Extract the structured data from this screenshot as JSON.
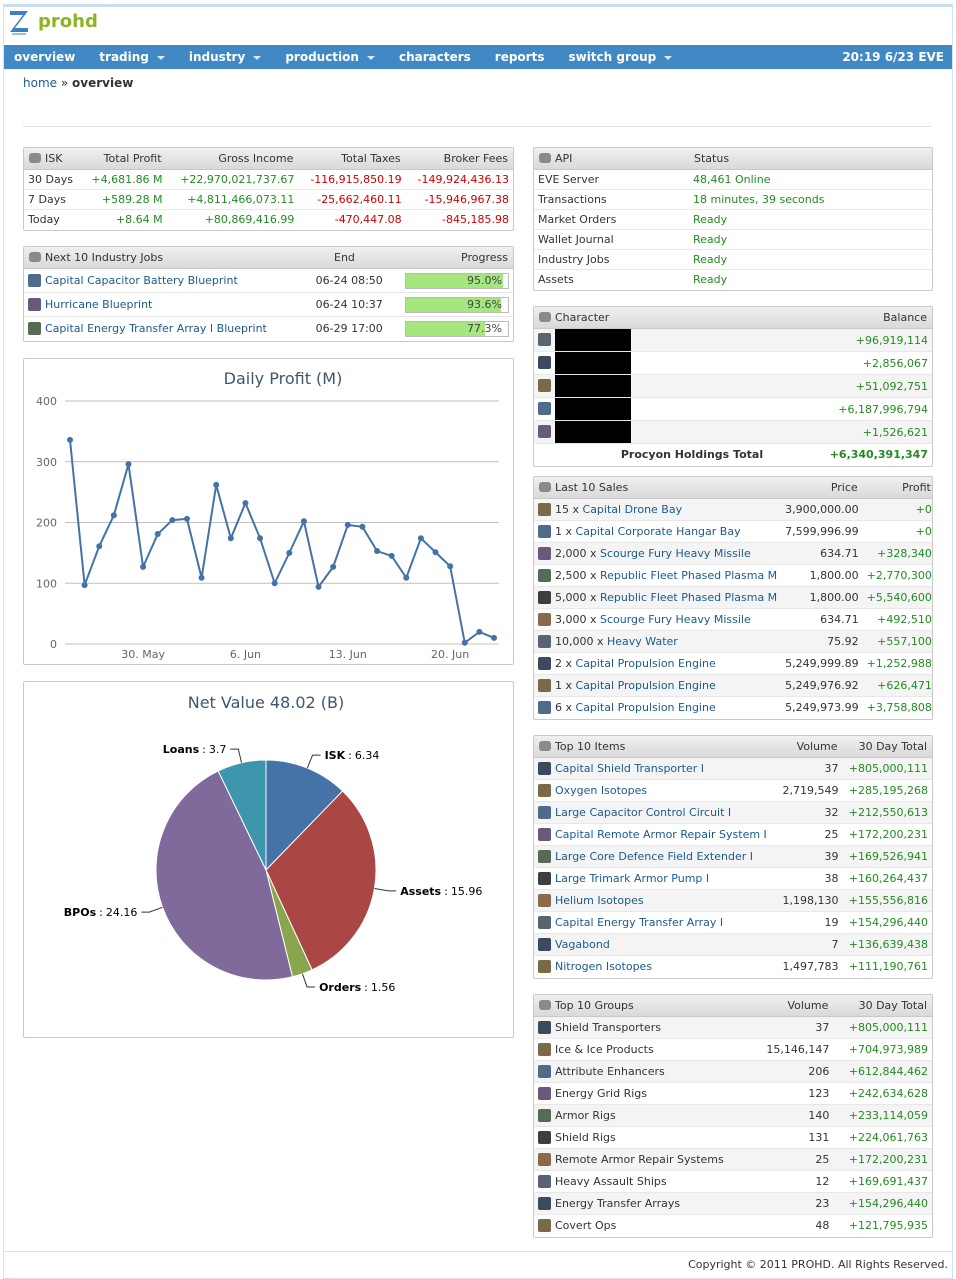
{
  "header": {
    "logo_text": "prohd",
    "clock": "20:19 6/23 EVE"
  },
  "nav": [
    {
      "label": "overview",
      "dropdown": false
    },
    {
      "label": "trading",
      "dropdown": true
    },
    {
      "label": "industry",
      "dropdown": true
    },
    {
      "label": "production",
      "dropdown": true
    },
    {
      "label": "characters",
      "dropdown": false
    },
    {
      "label": "reports",
      "dropdown": false
    },
    {
      "label": "switch group",
      "dropdown": true
    }
  ],
  "breadcrumb": {
    "home": "home",
    "separator": "»",
    "current": "overview"
  },
  "isk_table": {
    "headers": [
      "ISK",
      "Total Profit",
      "Gross Income",
      "Total Taxes",
      "Broker Fees"
    ],
    "rows": [
      [
        "30 Days",
        "+4,681.86 M",
        "+22,970,021,737.67",
        "-116,915,850.19",
        "-149,924,436.13"
      ],
      [
        "7 Days",
        "+589.28 M",
        "+4,811,466,073.11",
        "-25,662,460.11",
        "-15,946,967.38"
      ],
      [
        "Today",
        "+8.64 M",
        "+80,869,416.99",
        "-470,447.08",
        "-845,185.98"
      ]
    ]
  },
  "industry_jobs": {
    "headers": [
      "Next 10 Industry Jobs",
      "End",
      "Progress"
    ],
    "rows": [
      {
        "name": "Capital Capacitor Battery Blueprint",
        "end": "06-24 08:50",
        "progress": {
          "value": 95.0,
          "label": "95.0%"
        }
      },
      {
        "name": "Hurricane Blueprint",
        "end": "06-24 10:37",
        "progress": {
          "value": 93.6,
          "label": "93.6%"
        }
      },
      {
        "name": "Capital Energy Transfer Array I Blueprint",
        "end": "06-29 17:00",
        "progress": {
          "value": 77.3,
          "label": "77.3%"
        }
      }
    ]
  },
  "api_table": {
    "headers": [
      "API",
      "Status"
    ],
    "rows": [
      [
        "EVE Server",
        "48,461 Online"
      ],
      [
        "Transactions",
        "18 minutes, 39 seconds"
      ],
      [
        "Market Orders",
        "Ready"
      ],
      [
        "Wallet Journal",
        "Ready"
      ],
      [
        "Industry Jobs",
        "Ready"
      ],
      [
        "Assets",
        "Ready"
      ]
    ]
  },
  "character_table": {
    "headers": [
      "Character",
      "Balance"
    ],
    "rows": [
      "+96,919,114",
      "+2,856,067",
      "+51,092,751",
      "+6,187,996,794",
      "+1,526,621"
    ],
    "total_label": "Procyon Holdings Total",
    "total_value": "+6,340,391,347"
  },
  "sales_table": {
    "headers": [
      "Last 10 Sales",
      "Price",
      "Profit"
    ],
    "rows": [
      [
        "15 x",
        "Capital Drone Bay",
        "3,900,000.00",
        "+0"
      ],
      [
        "1 x",
        "Capital Corporate Hangar Bay",
        "7,599,996.99",
        "+0"
      ],
      [
        "2,000 x",
        "Scourge Fury Heavy Missile",
        "634.71",
        "+328,340"
      ],
      [
        "2,500 x",
        "Republic Fleet Phased Plasma M",
        "1,800.00",
        "+2,770,300"
      ],
      [
        "5,000 x",
        "Republic Fleet Phased Plasma M",
        "1,800.00",
        "+5,540,600"
      ],
      [
        "3,000 x",
        "Scourge Fury Heavy Missile",
        "634.71",
        "+492,510"
      ],
      [
        "10,000 x",
        "Heavy Water",
        "75.92",
        "+557,100"
      ],
      [
        "2 x",
        "Capital Propulsion Engine",
        "5,249,999.89",
        "+1,252,988"
      ],
      [
        "1 x",
        "Capital Propulsion Engine",
        "5,249,976.92",
        "+626,471"
      ],
      [
        "6 x",
        "Capital Propulsion Engine",
        "5,249,973.99",
        "+3,758,808"
      ]
    ]
  },
  "items_table": {
    "headers": [
      "Top 10 Items",
      "Volume",
      "30 Day Total"
    ],
    "rows": [
      [
        "Capital Shield Transporter I",
        "37",
        "+805,000,111"
      ],
      [
        "Oxygen Isotopes",
        "2,719,549",
        "+285,195,268"
      ],
      [
        "Large Capacitor Control Circuit I",
        "32",
        "+212,550,613"
      ],
      [
        "Capital Remote Armor Repair System I",
        "25",
        "+172,200,231"
      ],
      [
        "Large Core Defence Field Extender I",
        "39",
        "+169,526,941"
      ],
      [
        "Large Trimark Armor Pump I",
        "38",
        "+160,264,437"
      ],
      [
        "Helium Isotopes",
        "1,198,130",
        "+155,556,816"
      ],
      [
        "Capital Energy Transfer Array I",
        "19",
        "+154,296,440"
      ],
      [
        "Vagabond",
        "7",
        "+136,639,438"
      ],
      [
        "Nitrogen Isotopes",
        "1,497,783",
        "+111,190,761"
      ]
    ]
  },
  "groups_table": {
    "headers": [
      "Top 10 Groups",
      "Volume",
      "30 Day Total"
    ],
    "rows": [
      [
        "Shield Transporters",
        "37",
        "+805,000,111"
      ],
      [
        "Ice & Ice Products",
        "15,146,147",
        "+704,973,989"
      ],
      [
        "Attribute Enhancers",
        "206",
        "+612,844,462"
      ],
      [
        "Energy Grid Rigs",
        "123",
        "+242,634,628"
      ],
      [
        "Armor Rigs",
        "140",
        "+233,114,059"
      ],
      [
        "Shield Rigs",
        "131",
        "+224,061,763"
      ],
      [
        "Remote Armor Repair Systems",
        "25",
        "+172,200,231"
      ],
      [
        "Heavy Assault Ships",
        "12",
        "+169,691,437"
      ],
      [
        "Energy Transfer Arrays",
        "23",
        "+154,296,440"
      ],
      [
        "Covert Ops",
        "48",
        "+121,795,935"
      ]
    ]
  },
  "chart_data": [
    {
      "type": "line",
      "title": "Daily Profit (M)",
      "categories": [
        null,
        null,
        null,
        null,
        null,
        "30. May",
        null,
        null,
        null,
        null,
        null,
        null,
        "6. Jun",
        null,
        null,
        null,
        null,
        null,
        null,
        "13. Jun",
        null,
        null,
        null,
        null,
        null,
        null,
        "20. Jun",
        null,
        null,
        null
      ],
      "series": [
        {
          "name": "Daily Profit",
          "color": "#4572a7",
          "values": [
            336,
            97,
            161,
            212,
            296,
            127,
            181,
            204,
            206,
            109,
            262,
            174,
            232,
            174,
            100,
            150,
            202,
            94,
            127,
            196,
            193,
            153,
            145,
            109,
            174,
            151,
            128,
            2,
            20,
            10
          ]
        }
      ],
      "ylim": [
        0,
        400
      ],
      "yticks": [
        0,
        100,
        200,
        300,
        400
      ],
      "grid": true
    },
    {
      "type": "pie",
      "title": "Net Value 48.02 (B)",
      "categories": [
        "ISK",
        "Assets",
        "Orders",
        "BPOs",
        "Loans"
      ],
      "values": [
        6.34,
        15.96,
        1.56,
        24.16,
        3.7
      ],
      "colors": [
        "#4572a7",
        "#aa4643",
        "#89a54e",
        "#80699b",
        "#3d96ae"
      ],
      "separator": ":"
    }
  ],
  "footer": "Copyright © 2011 PROHD. All Rights Reserved."
}
